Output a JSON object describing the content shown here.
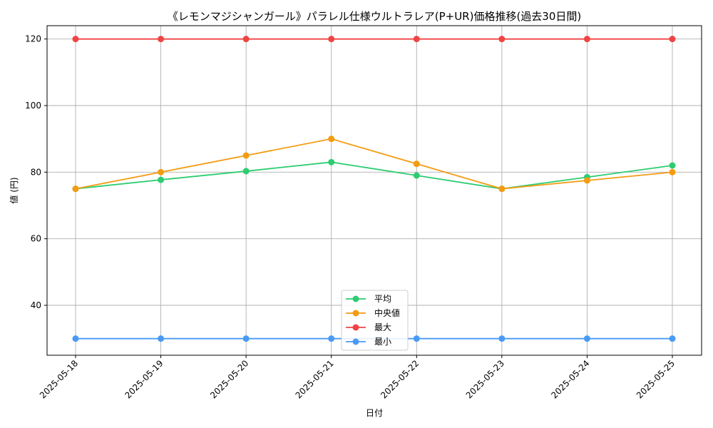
{
  "chart_data": {
    "type": "line",
    "title": "《レモンマジシャンガール》パラレル仕様ウルトラレア(P+UR)価格推移(過去30日間)",
    "xlabel": "日付",
    "ylabel": "値 (円)",
    "categories": [
      "2025-05-18",
      "2025-05-19",
      "2025-05-20",
      "2025-05-21",
      "2025-05-22",
      "2025-05-23",
      "2025-05-24",
      "2025-05-25"
    ],
    "ylim": [
      25,
      124
    ],
    "yticks": [
      40,
      60,
      80,
      100,
      120
    ],
    "grid": true,
    "legend_position": "bottom-center",
    "series": [
      {
        "name": "平均",
        "color": "#2ecc71",
        "values": [
          75,
          77.7,
          80.3,
          83,
          79,
          75,
          78.5,
          82
        ]
      },
      {
        "name": "中央値",
        "color": "#f39c12",
        "values": [
          75,
          80,
          85,
          90,
          82.5,
          75,
          77.5,
          80
        ]
      },
      {
        "name": "最大",
        "color": "#ef4444",
        "values": [
          120,
          120,
          120,
          120,
          120,
          120,
          120,
          120
        ]
      },
      {
        "name": "最小",
        "color": "#4a9af5",
        "values": [
          30,
          30,
          30,
          30,
          30,
          30,
          30,
          30
        ]
      }
    ]
  }
}
